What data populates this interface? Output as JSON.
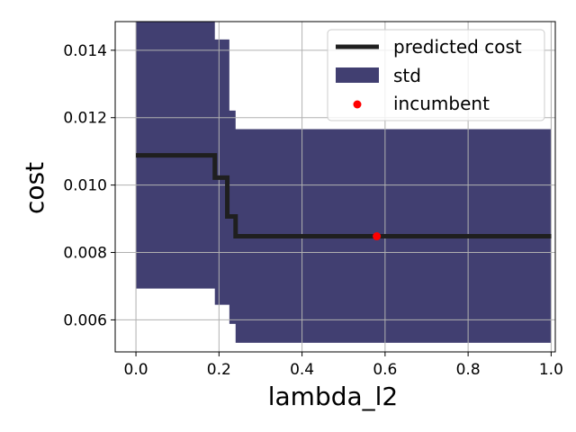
{
  "chart_data": {
    "type": "line",
    "xlabel": "lambda_l2",
    "ylabel": "cost",
    "xlim": [
      -0.05,
      1.01
    ],
    "ylim": [
      0.00505,
      0.01485
    ],
    "x_ticks": [
      0.0,
      0.2,
      0.4,
      0.6,
      0.8,
      1.0
    ],
    "x_tick_labels": [
      "0.0",
      "0.2",
      "0.4",
      "0.6",
      "0.8",
      "1.0"
    ],
    "y_ticks": [
      0.006,
      0.008,
      0.01,
      0.012,
      0.014
    ],
    "y_tick_labels": [
      "0.006",
      "0.008",
      "0.010",
      "0.012",
      "0.014"
    ],
    "grid": true,
    "legend_position": "top-right",
    "colors": {
      "line": "#1f1f1f",
      "band": "#413f71",
      "point": "#ff0000",
      "grid": "#b0b0b0"
    },
    "series": [
      {
        "name": "predicted cost",
        "kind": "step-line",
        "x": [
          0.0,
          0.19,
          0.19,
          0.22,
          0.22,
          0.24,
          0.24,
          1.0
        ],
        "y": [
          0.01088,
          0.01088,
          0.01022,
          0.01022,
          0.00907,
          0.00907,
          0.00848,
          0.00848
        ]
      },
      {
        "name": "std",
        "kind": "band",
        "x": [
          0.0,
          0.19,
          0.19,
          0.225,
          0.225,
          0.24,
          0.24,
          1.0
        ],
        "upper": [
          0.0153,
          0.0153,
          0.01432,
          0.01432,
          0.01221,
          0.01221,
          0.01166,
          0.01166
        ],
        "lower": [
          0.00693,
          0.00693,
          0.00645,
          0.00645,
          0.00588,
          0.00588,
          0.00532,
          0.00532
        ]
      },
      {
        "name": "incumbent",
        "kind": "point",
        "x": [
          0.58
        ],
        "y": [
          0.00848
        ]
      }
    ]
  }
}
